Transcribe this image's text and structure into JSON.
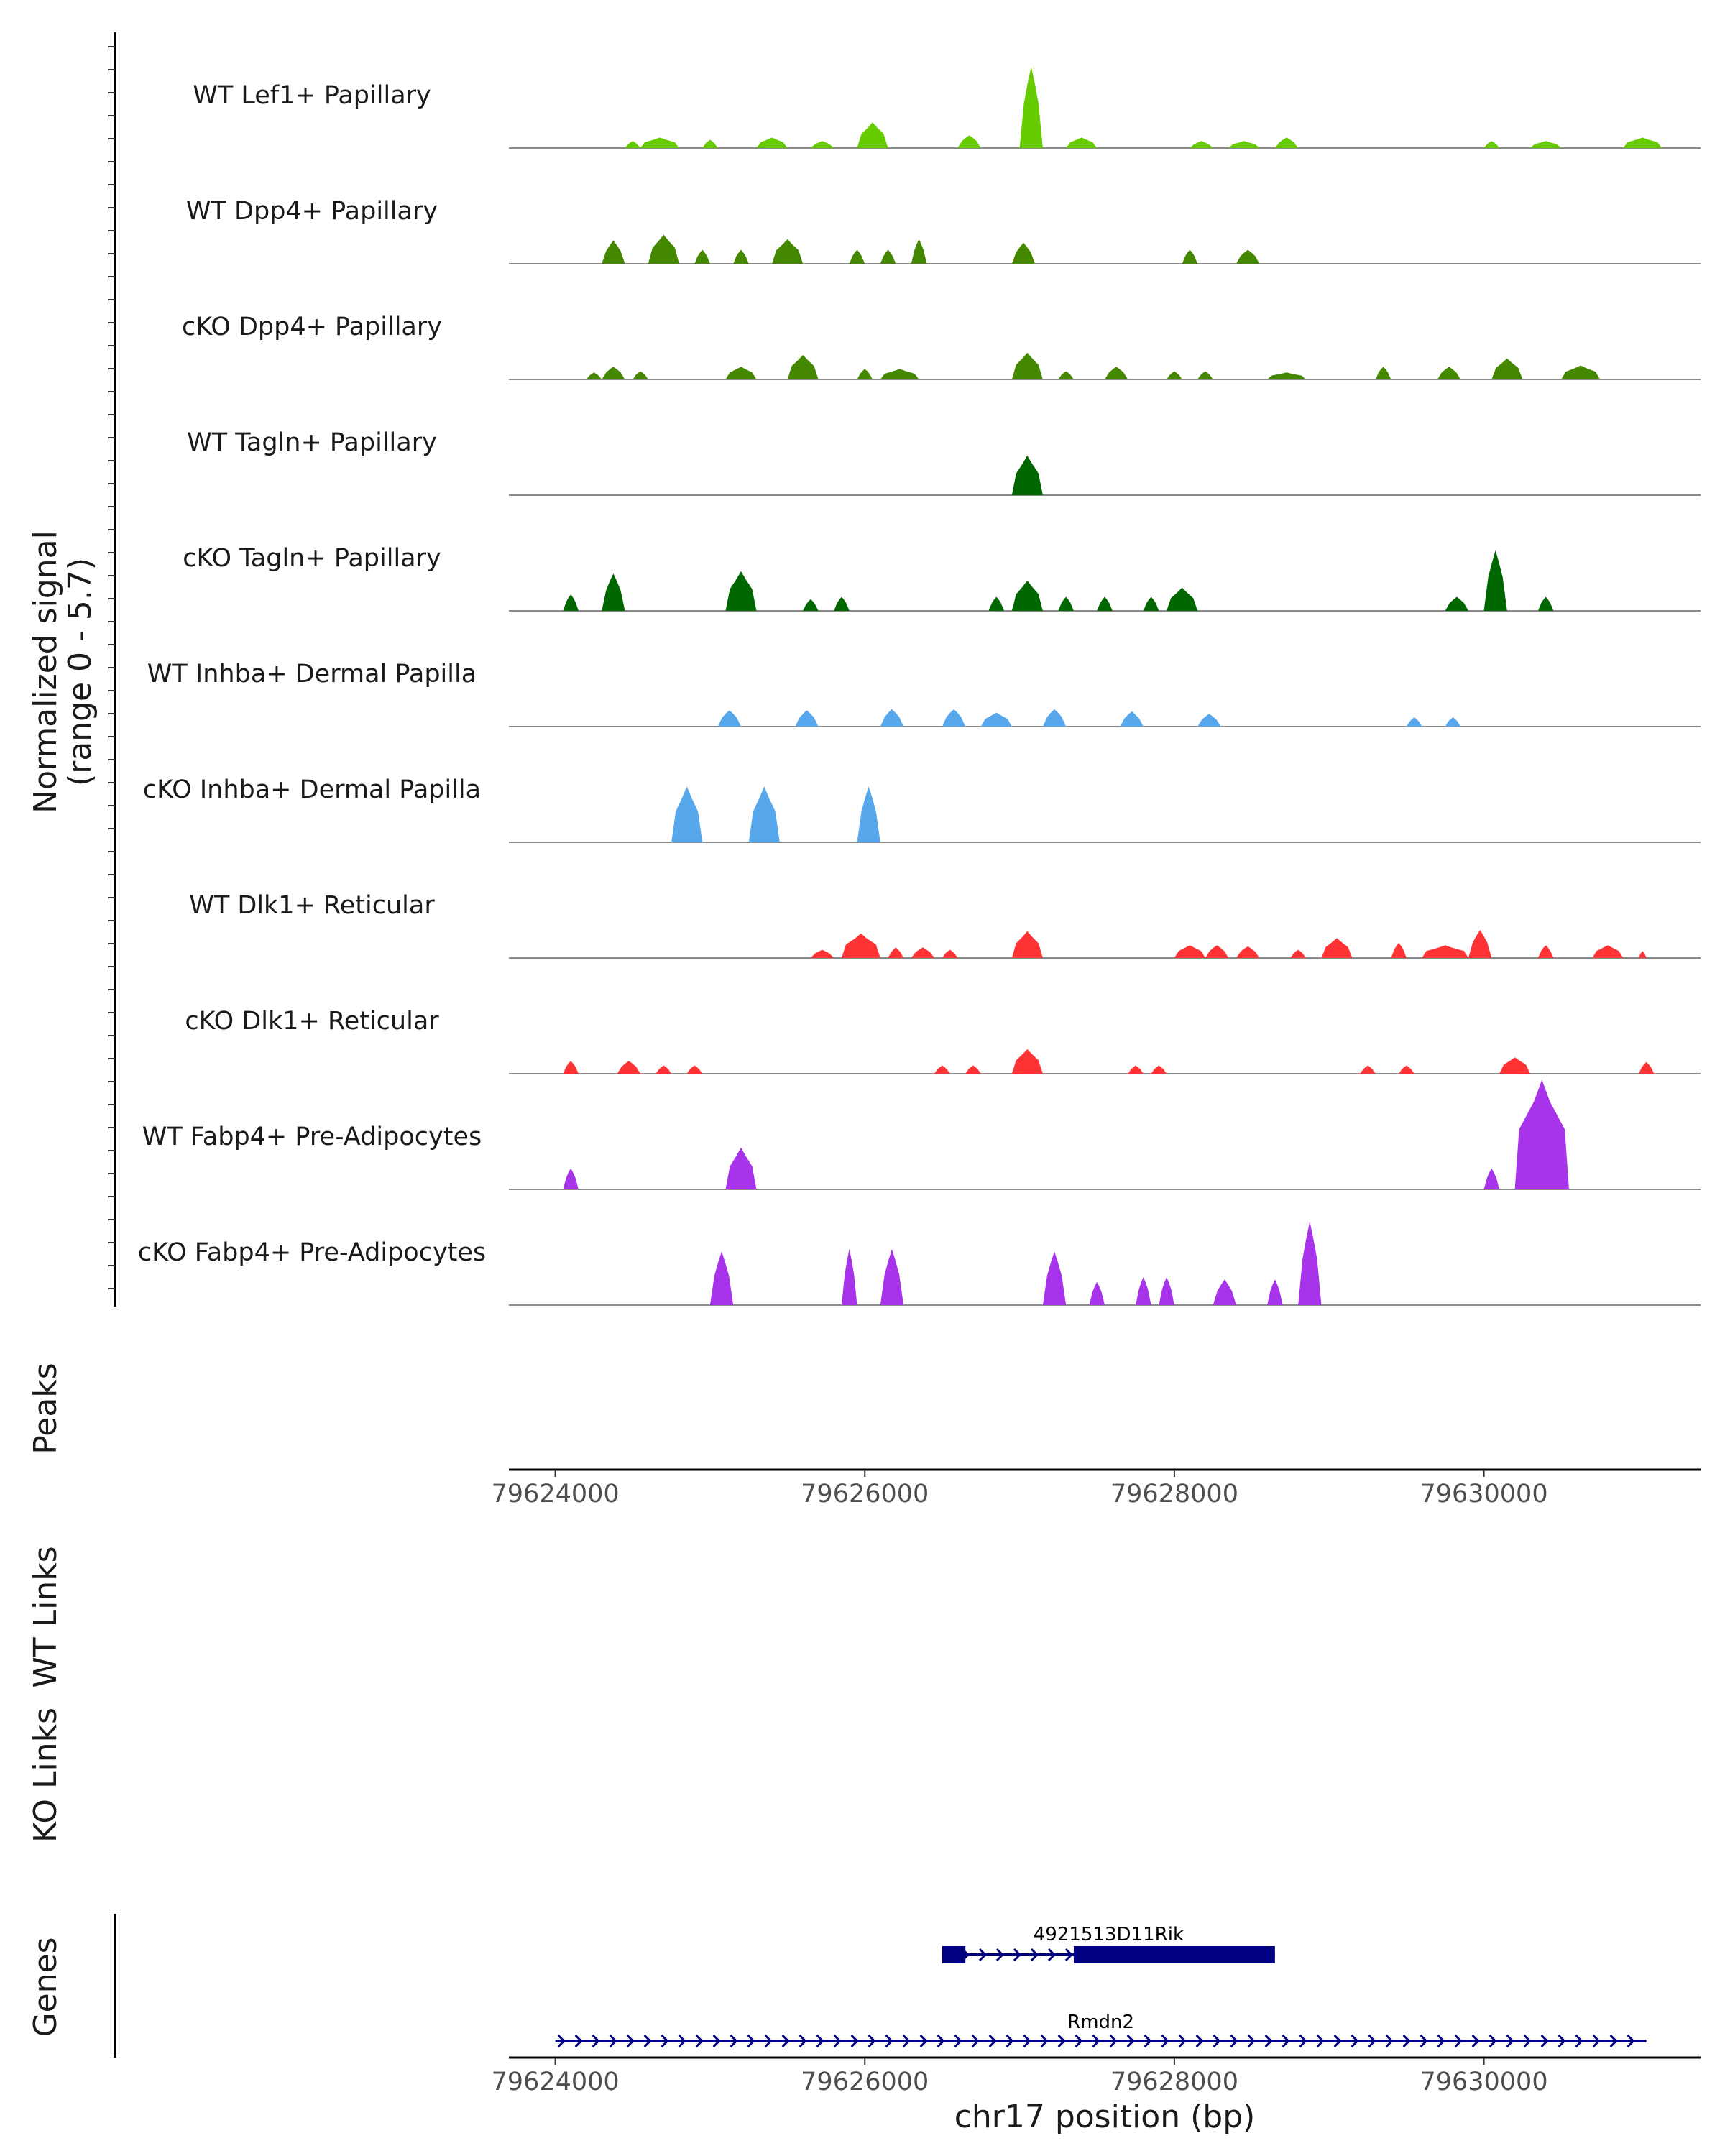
{
  "chart_data": {
    "type": "area",
    "chromosome": "chr17",
    "xlim": [
      79623700,
      79631400
    ],
    "signal_range": [
      0,
      5.7
    ],
    "ylabel_line1": "Normalized signal",
    "ylabel_line2": "(range 0 - 5.7)",
    "xlabel": "chr17 position (bp)",
    "x_ticks": [
      79624000,
      79626000,
      79628000,
      79630000
    ],
    "x_tick_labels": [
      "79624000",
      "79626000",
      "79628000",
      "79630000"
    ],
    "panel_titles": [
      "Peaks",
      "WT Links",
      "KO Links",
      "Genes"
    ],
    "tracks": [
      {
        "name": "WT Lef1+ Papillary",
        "color": "#66CC00",
        "peaks": [
          [
            79624450,
            79624550,
            0.3
          ],
          [
            79624550,
            79624800,
            0.45
          ],
          [
            79624950,
            79625050,
            0.35
          ],
          [
            79625300,
            79625500,
            0.45
          ],
          [
            79625650,
            79625800,
            0.3
          ],
          [
            79625950,
            79626150,
            1.1
          ],
          [
            79626600,
            79626750,
            0.55
          ],
          [
            79627000,
            79627150,
            3.5
          ],
          [
            79627300,
            79627500,
            0.45
          ],
          [
            79628100,
            79628250,
            0.3
          ],
          [
            79628350,
            79628550,
            0.3
          ],
          [
            79628650,
            79628800,
            0.45
          ],
          [
            79630000,
            79630100,
            0.3
          ],
          [
            79630300,
            79630500,
            0.3
          ],
          [
            79630900,
            79631150,
            0.45
          ]
        ]
      },
      {
        "name": "WT Dpp4+ Papillary",
        "color": "#448800",
        "peaks": [
          [
            79624300,
            79624450,
            1.0
          ],
          [
            79624600,
            79624800,
            1.25
          ],
          [
            79624900,
            79625000,
            0.6
          ],
          [
            79625150,
            79625250,
            0.6
          ],
          [
            79625400,
            79625600,
            1.05
          ],
          [
            79625900,
            79626000,
            0.6
          ],
          [
            79626100,
            79626200,
            0.6
          ],
          [
            79626300,
            79626400,
            1.05
          ],
          [
            79626950,
            79627100,
            0.9
          ],
          [
            79628050,
            79628150,
            0.6
          ],
          [
            79628400,
            79628550,
            0.6
          ]
        ]
      },
      {
        "name": "cKO Dpp4+ Papillary",
        "color": "#448800",
        "peaks": [
          [
            79624200,
            79624300,
            0.3
          ],
          [
            79624300,
            79624450,
            0.55
          ],
          [
            79624500,
            79624600,
            0.35
          ],
          [
            79625100,
            79625300,
            0.55
          ],
          [
            79625500,
            79625700,
            1.05
          ],
          [
            79625950,
            79626050,
            0.45
          ],
          [
            79626100,
            79626350,
            0.45
          ],
          [
            79626950,
            79627150,
            1.15
          ],
          [
            79627250,
            79627350,
            0.35
          ],
          [
            79627550,
            79627700,
            0.55
          ],
          [
            79627950,
            79628050,
            0.35
          ],
          [
            79628150,
            79628250,
            0.35
          ],
          [
            79628600,
            79628850,
            0.3
          ],
          [
            79629300,
            79629400,
            0.55
          ],
          [
            79629700,
            79629850,
            0.55
          ],
          [
            79630050,
            79630250,
            0.9
          ],
          [
            79630500,
            79630750,
            0.6
          ]
        ]
      },
      {
        "name": "WT Tagln+ Papillary",
        "color": "#006600",
        "peaks": [
          [
            79626950,
            79627150,
            1.7
          ]
        ]
      },
      {
        "name": "cKO Tagln+ Papillary",
        "color": "#006600",
        "peaks": [
          [
            79624050,
            79624150,
            0.7
          ],
          [
            79624300,
            79624450,
            1.6
          ],
          [
            79625100,
            79625300,
            1.7
          ],
          [
            79625600,
            79625700,
            0.5
          ],
          [
            79625800,
            79625900,
            0.6
          ],
          [
            79626800,
            79626900,
            0.6
          ],
          [
            79626950,
            79627150,
            1.3
          ],
          [
            79627250,
            79627350,
            0.6
          ],
          [
            79627500,
            79627600,
            0.6
          ],
          [
            79627800,
            79627900,
            0.6
          ],
          [
            79627950,
            79628150,
            1.0
          ],
          [
            79629750,
            79629900,
            0.6
          ],
          [
            79630000,
            79630150,
            2.6
          ],
          [
            79630350,
            79630450,
            0.6
          ]
        ]
      },
      {
        "name": "WT Inhba+ Dermal Papilla",
        "color": "#56A7EB",
        "peaks": [
          [
            79625050,
            79625200,
            0.7
          ],
          [
            79625550,
            79625700,
            0.7
          ],
          [
            79626100,
            79626250,
            0.75
          ],
          [
            79626500,
            79626650,
            0.75
          ],
          [
            79626750,
            79626950,
            0.6
          ],
          [
            79627150,
            79627300,
            0.75
          ],
          [
            79627650,
            79627800,
            0.65
          ],
          [
            79628150,
            79628300,
            0.55
          ],
          [
            79629500,
            79629600,
            0.4
          ],
          [
            79629750,
            79629850,
            0.4
          ]
        ]
      },
      {
        "name": "cKO Inhba+ Dermal Papilla",
        "color": "#56A7EB",
        "peaks": [
          [
            79624750,
            79624950,
            2.4
          ],
          [
            79625250,
            79625450,
            2.4
          ],
          [
            79625950,
            79626100,
            2.4
          ]
        ]
      },
      {
        "name": "WT Dlk1+ Reticular",
        "color": "#FF3333",
        "peaks": [
          [
            79625650,
            79625800,
            0.35
          ],
          [
            79625850,
            79626100,
            1.05
          ],
          [
            79626150,
            79626250,
            0.45
          ],
          [
            79626300,
            79626450,
            0.45
          ],
          [
            79626500,
            79626600,
            0.35
          ],
          [
            79626950,
            79627150,
            1.15
          ],
          [
            79628000,
            79628200,
            0.55
          ],
          [
            79628200,
            79628350,
            0.55
          ],
          [
            79628400,
            79628550,
            0.5
          ],
          [
            79628750,
            79628850,
            0.35
          ],
          [
            79628950,
            79629150,
            0.85
          ],
          [
            79629400,
            79629500,
            0.65
          ],
          [
            79629600,
            79629900,
            0.55
          ],
          [
            79629900,
            79630050,
            1.2
          ],
          [
            79630350,
            79630450,
            0.55
          ],
          [
            79630700,
            79630900,
            0.55
          ],
          [
            79631000,
            79631050,
            0.3
          ]
        ]
      },
      {
        "name": "cKO Dlk1+ Reticular",
        "color": "#FF3333",
        "peaks": [
          [
            79624050,
            79624150,
            0.55
          ],
          [
            79624400,
            79624550,
            0.55
          ],
          [
            79624650,
            79624750,
            0.35
          ],
          [
            79624850,
            79624950,
            0.35
          ],
          [
            79626450,
            79626550,
            0.35
          ],
          [
            79626650,
            79626750,
            0.35
          ],
          [
            79626950,
            79627150,
            1.05
          ],
          [
            79627700,
            79627800,
            0.35
          ],
          [
            79627850,
            79627950,
            0.35
          ],
          [
            79629200,
            79629300,
            0.35
          ],
          [
            79629450,
            79629550,
            0.35
          ],
          [
            79630100,
            79630300,
            0.7
          ],
          [
            79631000,
            79631100,
            0.5
          ]
        ]
      },
      {
        "name": "WT Fabp4+ Pre-Adipocytes",
        "color": "#A733EB",
        "peaks": [
          [
            79624050,
            79624150,
            0.9
          ],
          [
            79625100,
            79625300,
            1.8
          ],
          [
            79630000,
            79630100,
            0.9
          ],
          [
            79630200,
            79630550,
            4.7
          ]
        ]
      },
      {
        "name": "cKO Fabp4+ Pre-Adipocytes",
        "color": "#A733EB",
        "peaks": [
          [
            79625000,
            79625150,
            2.3
          ],
          [
            79625850,
            79625950,
            2.4
          ],
          [
            79626100,
            79626250,
            2.4
          ],
          [
            79627150,
            79627300,
            2.3
          ],
          [
            79627450,
            79627550,
            1.0
          ],
          [
            79627750,
            79627850,
            1.2
          ],
          [
            79627900,
            79628000,
            1.2
          ],
          [
            79628250,
            79628400,
            1.1
          ],
          [
            79628600,
            79628700,
            1.1
          ],
          [
            79628800,
            79628950,
            3.6
          ]
        ]
      }
    ],
    "genes": [
      {
        "name": "4921513D11Rik",
        "strand": "+",
        "start": 79626500,
        "end": 79628650,
        "exons": [
          [
            79626500,
            79626650
          ],
          [
            79627350,
            79628650
          ]
        ]
      },
      {
        "name": "Rmdn2",
        "strand": "+",
        "start": 79624000,
        "end": 79631050,
        "exons": []
      }
    ],
    "gene_color": "#000080"
  }
}
